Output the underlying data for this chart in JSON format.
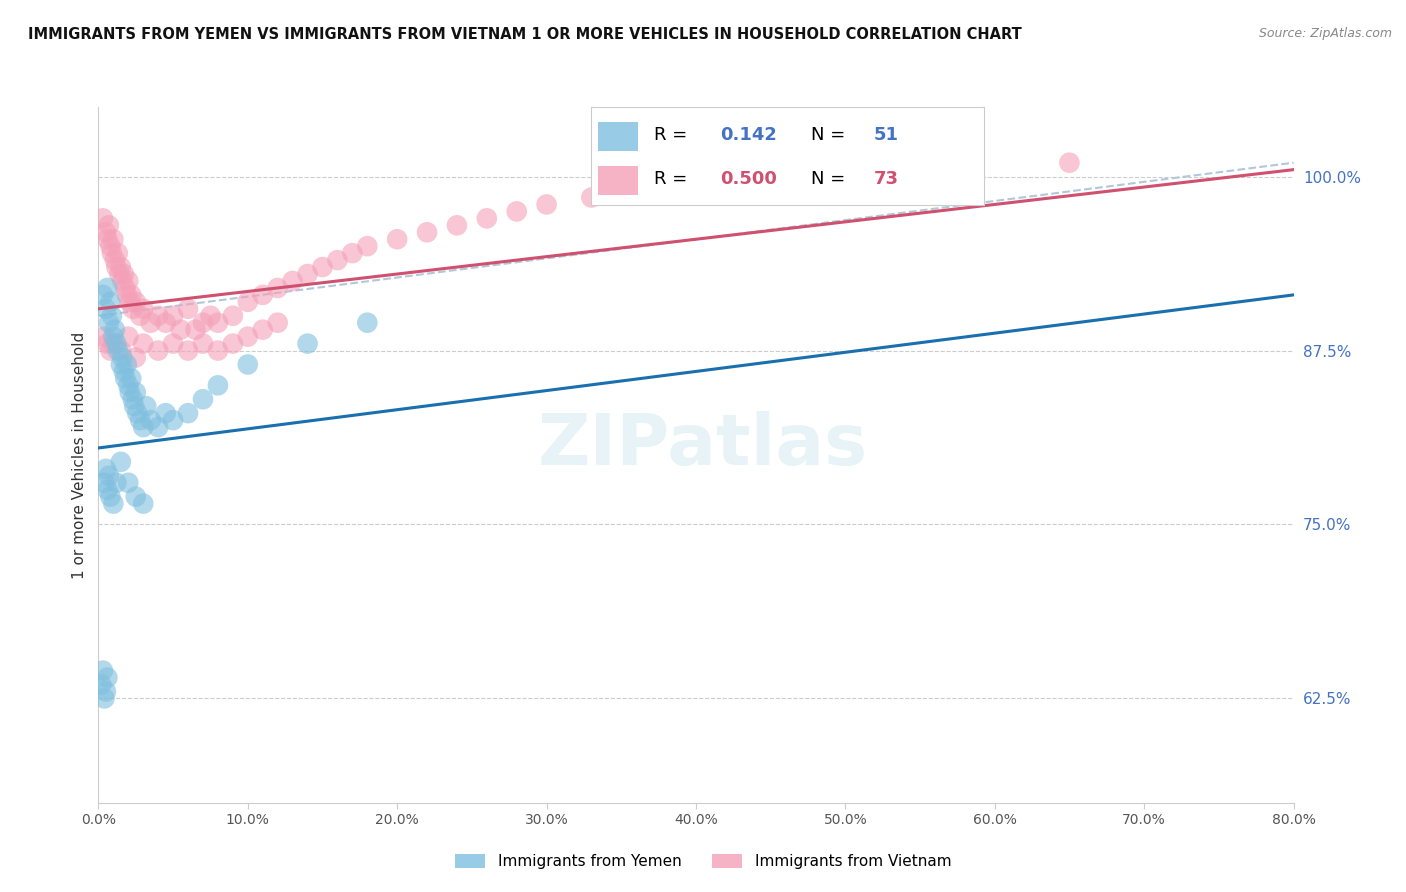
{
  "title": "IMMIGRANTS FROM YEMEN VS IMMIGRANTS FROM VIETNAM 1 OR MORE VEHICLES IN HOUSEHOLD CORRELATION CHART",
  "source": "Source: ZipAtlas.com",
  "ylabel": "1 or more Vehicles in Household",
  "xlim": [
    0.0,
    80.0
  ],
  "ylim": [
    55.0,
    105.0
  ],
  "yticks": [
    62.5,
    75.0,
    87.5,
    100.0
  ],
  "xticks": [
    0.0,
    10.0,
    20.0,
    30.0,
    40.0,
    50.0,
    60.0,
    70.0,
    80.0
  ],
  "r_yemen": 0.142,
  "n_yemen": 51,
  "r_vietnam": 0.5,
  "n_vietnam": 73,
  "color_yemen": "#7fbfdf",
  "color_vietnam": "#f4a0b8",
  "color_yemen_line": "#1a6faf",
  "color_vietnam_line": "#d05070",
  "color_dashed": "#b0c8d8",
  "yemen_line_x0": 0.0,
  "yemen_line_y0": 80.5,
  "yemen_line_x1": 80.0,
  "yemen_line_y1": 91.5,
  "vietnam_line_x0": 0.0,
  "vietnam_line_y0": 90.5,
  "vietnam_line_x1": 80.0,
  "vietnam_line_y1": 100.5,
  "dashed_line_x0": 0.0,
  "dashed_line_y0": 90.0,
  "dashed_line_x1": 80.0,
  "dashed_line_y1": 101.0,
  "yemen_scatter_x": [
    0.3,
    0.5,
    0.6,
    0.7,
    0.8,
    0.9,
    1.0,
    1.1,
    1.2,
    1.3,
    1.5,
    1.6,
    1.7,
    1.8,
    1.9,
    2.0,
    2.1,
    2.2,
    2.3,
    2.4,
    2.5,
    2.6,
    2.8,
    3.0,
    3.2,
    3.5,
    4.0,
    4.5,
    5.0,
    6.0,
    7.0,
    8.0,
    10.0,
    14.0,
    18.0,
    0.4,
    0.5,
    0.6,
    0.7,
    0.8,
    1.0,
    1.2,
    1.5,
    2.0,
    2.5,
    3.0,
    0.2,
    0.3,
    0.4,
    0.5,
    0.6
  ],
  "yemen_scatter_y": [
    91.5,
    90.5,
    92.0,
    89.5,
    91.0,
    90.0,
    88.5,
    89.0,
    88.0,
    87.5,
    86.5,
    87.0,
    86.0,
    85.5,
    86.5,
    85.0,
    84.5,
    85.5,
    84.0,
    83.5,
    84.5,
    83.0,
    82.5,
    82.0,
    83.5,
    82.5,
    82.0,
    83.0,
    82.5,
    83.0,
    84.0,
    85.0,
    86.5,
    88.0,
    89.5,
    78.0,
    79.0,
    77.5,
    78.5,
    77.0,
    76.5,
    78.0,
    79.5,
    78.0,
    77.0,
    76.5,
    63.5,
    64.5,
    62.5,
    63.0,
    64.0
  ],
  "vietnam_scatter_x": [
    0.3,
    0.5,
    0.6,
    0.7,
    0.8,
    0.9,
    1.0,
    1.1,
    1.2,
    1.3,
    1.4,
    1.5,
    1.6,
    1.7,
    1.8,
    1.9,
    2.0,
    2.1,
    2.2,
    2.3,
    2.5,
    2.8,
    3.0,
    3.5,
    4.0,
    4.5,
    5.0,
    5.5,
    6.0,
    6.5,
    7.0,
    7.5,
    8.0,
    9.0,
    10.0,
    11.0,
    12.0,
    13.0,
    14.0,
    15.0,
    16.0,
    17.0,
    18.0,
    20.0,
    22.0,
    24.0,
    26.0,
    28.0,
    30.0,
    33.0,
    36.0,
    39.0,
    42.0,
    50.0,
    55.0,
    65.0,
    0.4,
    0.6,
    0.8,
    1.0,
    1.5,
    2.0,
    2.5,
    3.0,
    4.0,
    5.0,
    6.0,
    7.0,
    8.0,
    9.0,
    10.0,
    11.0,
    12.0
  ],
  "vietnam_scatter_y": [
    97.0,
    96.0,
    95.5,
    96.5,
    95.0,
    94.5,
    95.5,
    94.0,
    93.5,
    94.5,
    93.0,
    93.5,
    92.5,
    93.0,
    92.0,
    91.5,
    92.5,
    91.0,
    91.5,
    90.5,
    91.0,
    90.0,
    90.5,
    89.5,
    90.0,
    89.5,
    90.0,
    89.0,
    90.5,
    89.0,
    89.5,
    90.0,
    89.5,
    90.0,
    91.0,
    91.5,
    92.0,
    92.5,
    93.0,
    93.5,
    94.0,
    94.5,
    95.0,
    95.5,
    96.0,
    96.5,
    97.0,
    97.5,
    98.0,
    98.5,
    99.0,
    99.5,
    100.0,
    100.0,
    100.5,
    101.0,
    88.5,
    88.0,
    87.5,
    88.0,
    87.5,
    88.5,
    87.0,
    88.0,
    87.5,
    88.0,
    87.5,
    88.0,
    87.5,
    88.0,
    88.5,
    89.0,
    89.5
  ]
}
